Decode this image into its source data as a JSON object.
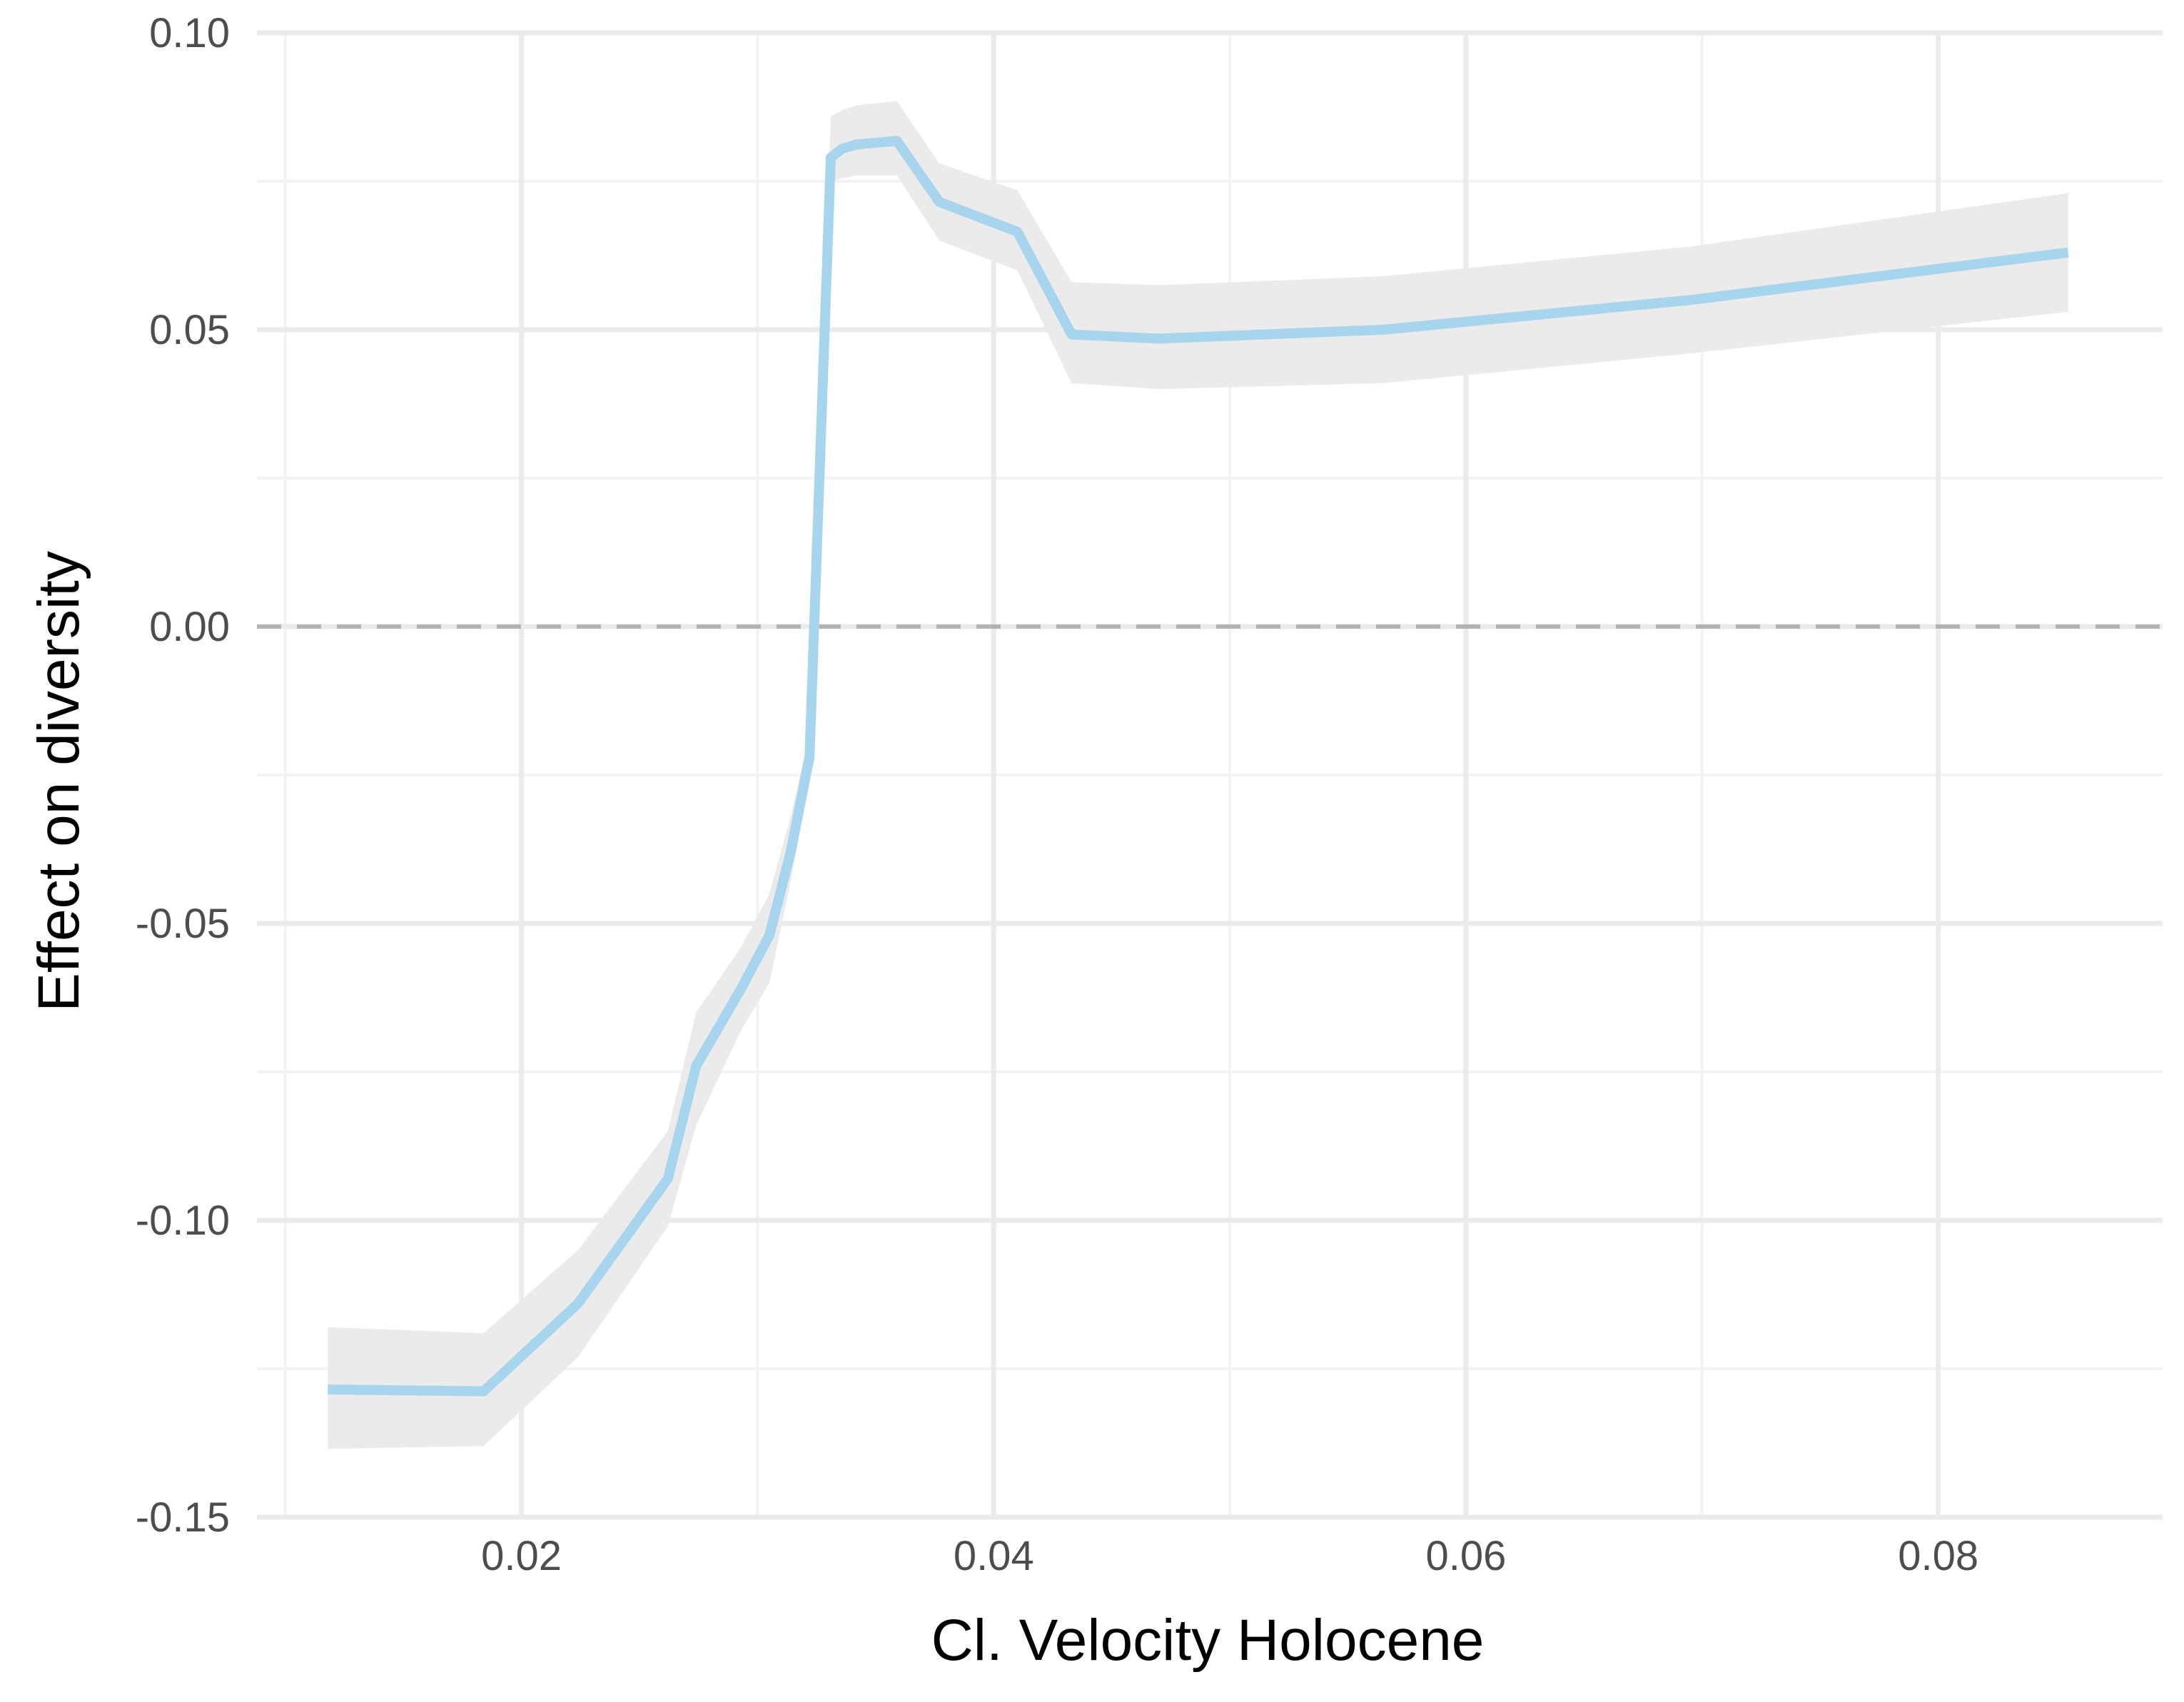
{
  "chart_data": {
    "type": "line",
    "xlabel": "Cl. Velocity Holocene",
    "ylabel": "Effect on diversity",
    "xlim": [
      0.0088,
      0.0895
    ],
    "ylim": [
      -0.15,
      0.1
    ],
    "x_ticks": [
      "0.02",
      "0.04",
      "0.06",
      "0.08"
    ],
    "x_tick_values": [
      0.02,
      0.04,
      0.06,
      0.08
    ],
    "x_minor_tick_values": [
      0.01,
      0.03,
      0.05,
      0.07
    ],
    "y_ticks": [
      "-0.15",
      "-0.10",
      "-0.05",
      "0.00",
      "0.05",
      "0.10"
    ],
    "y_tick_values": [
      -0.15,
      -0.1,
      -0.05,
      0.0,
      0.05,
      0.1
    ],
    "y_minor_tick_values": [
      -0.125,
      -0.075,
      -0.025,
      0.025,
      0.075
    ],
    "reference_line": {
      "y": 0.0,
      "style": "dashed"
    },
    "grid": true,
    "legend": "none",
    "series": [
      {
        "x": [
          0.0118,
          0.0184,
          0.0224,
          0.0262,
          0.0274,
          0.0293,
          0.0305,
          0.0314,
          0.0322,
          0.0331,
          0.0336,
          0.0342,
          0.0359,
          0.0377,
          0.041,
          0.0433,
          0.047,
          0.0565,
          0.0695,
          0.0855
        ],
        "y": [
          -0.1285,
          -0.1288,
          -0.114,
          -0.093,
          -0.074,
          -0.061,
          -0.052,
          -0.038,
          -0.022,
          0.079,
          0.0805,
          0.0812,
          0.0818,
          0.0715,
          0.0665,
          0.0492,
          0.0485,
          0.05,
          0.055,
          0.063
        ],
        "lower": [
          -0.1385,
          -0.138,
          -0.123,
          -0.101,
          -0.084,
          -0.068,
          -0.06,
          -0.043,
          -0.026,
          0.075,
          0.0755,
          0.076,
          0.076,
          0.065,
          0.06,
          0.041,
          0.04,
          0.041,
          0.046,
          0.053
        ],
        "upper": [
          -0.118,
          -0.119,
          -0.105,
          -0.085,
          -0.065,
          -0.054,
          -0.045,
          -0.032,
          -0.018,
          0.086,
          0.087,
          0.0878,
          0.0885,
          0.078,
          0.0735,
          0.058,
          0.0575,
          0.059,
          0.064,
          0.073
        ]
      }
    ]
  },
  "colors": {
    "line": "#a8d5ee",
    "ribbon": "#ebebeb",
    "grid_major": "#ebebeb",
    "grid_minor": "#f3f3f3",
    "zero_line": "#b3b3b3"
  }
}
